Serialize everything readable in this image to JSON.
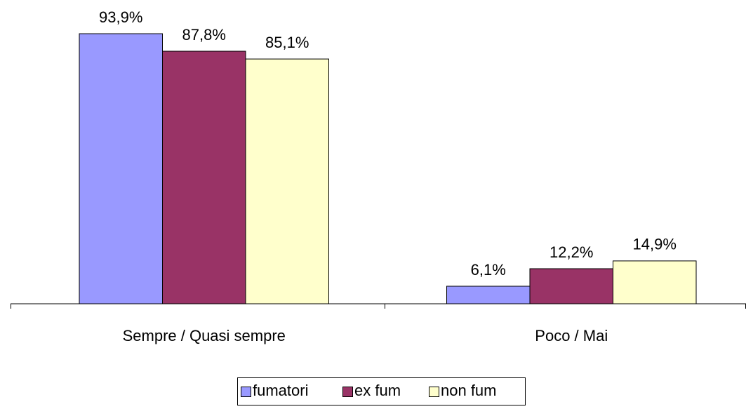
{
  "chart_data": {
    "type": "bar",
    "categories": [
      "Sempre / Quasi sempre",
      "Poco / Mai"
    ],
    "series": [
      {
        "name": "fumatori",
        "color": "#9999ff",
        "values": [
          93.9,
          6.1
        ],
        "value_labels": [
          "93,9%",
          "6,1%"
        ]
      },
      {
        "name": "ex fum",
        "color": "#993366",
        "values": [
          87.8,
          12.2
        ],
        "value_labels": [
          "87,8%",
          "12,2%"
        ]
      },
      {
        "name": "non fum",
        "color": "#ffffcc",
        "values": [
          85.1,
          14.9
        ],
        "value_labels": [
          "85,1%",
          "14,9%"
        ]
      }
    ],
    "ylim": [
      0,
      100
    ],
    "grid": false,
    "legend": "bottom"
  }
}
